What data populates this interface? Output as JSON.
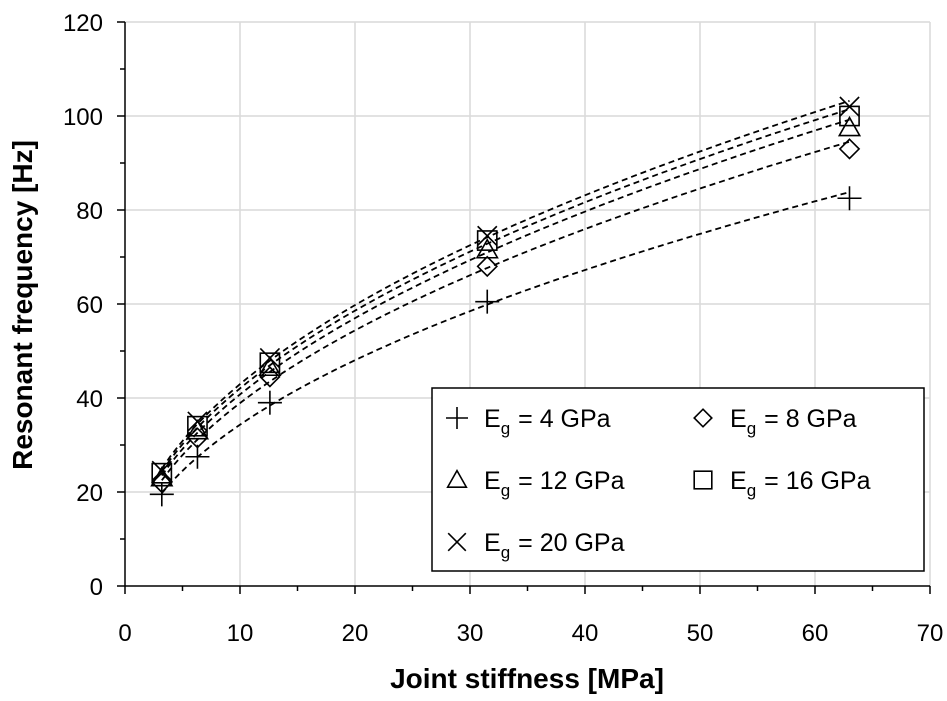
{
  "chart_data": {
    "type": "scatter",
    "xlabel": "Joint stiffness [MPa]",
    "ylabel": "Resonant frequency [Hz]",
    "xlim": [
      0,
      70
    ],
    "ylim": [
      0,
      120
    ],
    "x_ticks": [
      0,
      10,
      20,
      30,
      40,
      50,
      60,
      70
    ],
    "y_ticks": [
      0,
      20,
      40,
      60,
      80,
      100,
      120
    ],
    "grid": true,
    "legend_position": "bottom-right",
    "trend_lines": "dashed fitted curves, one per series",
    "x": [
      3.2,
      6.3,
      12.6,
      31.5,
      63.0
    ],
    "series": [
      {
        "name": "E_g = 4 GPa",
        "label_main": "E",
        "label_sub": "g",
        "label_rest": "= 4 GPa",
        "marker": "plus",
        "values": [
          19.5,
          27.5,
          39.0,
          60.5,
          82.5
        ]
      },
      {
        "name": "E_g = 8 GPa",
        "label_main": "E",
        "label_sub": "g",
        "label_rest": "= 8 GPa",
        "marker": "diamond",
        "values": [
          22.0,
          31.5,
          44.5,
          68.0,
          93.0
        ]
      },
      {
        "name": "E_g = 12 GPa",
        "label_main": "E",
        "label_sub": "g",
        "label_rest": "= 12 GPa",
        "marker": "triangle",
        "values": [
          23.0,
          33.0,
          46.5,
          71.5,
          97.5
        ]
      },
      {
        "name": "E_g = 16 GPa",
        "label_main": "E",
        "label_sub": "g",
        "label_rest": "= 16 GPa",
        "marker": "square",
        "values": [
          24.0,
          34.0,
          47.5,
          73.5,
          100.0
        ]
      },
      {
        "name": "E_g = 20 GPa",
        "label_main": "E",
        "label_sub": "g",
        "label_rest": "= 20 GPa",
        "marker": "cross",
        "values": [
          24.5,
          35.0,
          48.5,
          74.5,
          102.0
        ]
      }
    ],
    "colors": {
      "marker": "#000000",
      "grid": "#d9d9d9",
      "axis": "#000000",
      "trend_line": "#000000"
    }
  }
}
